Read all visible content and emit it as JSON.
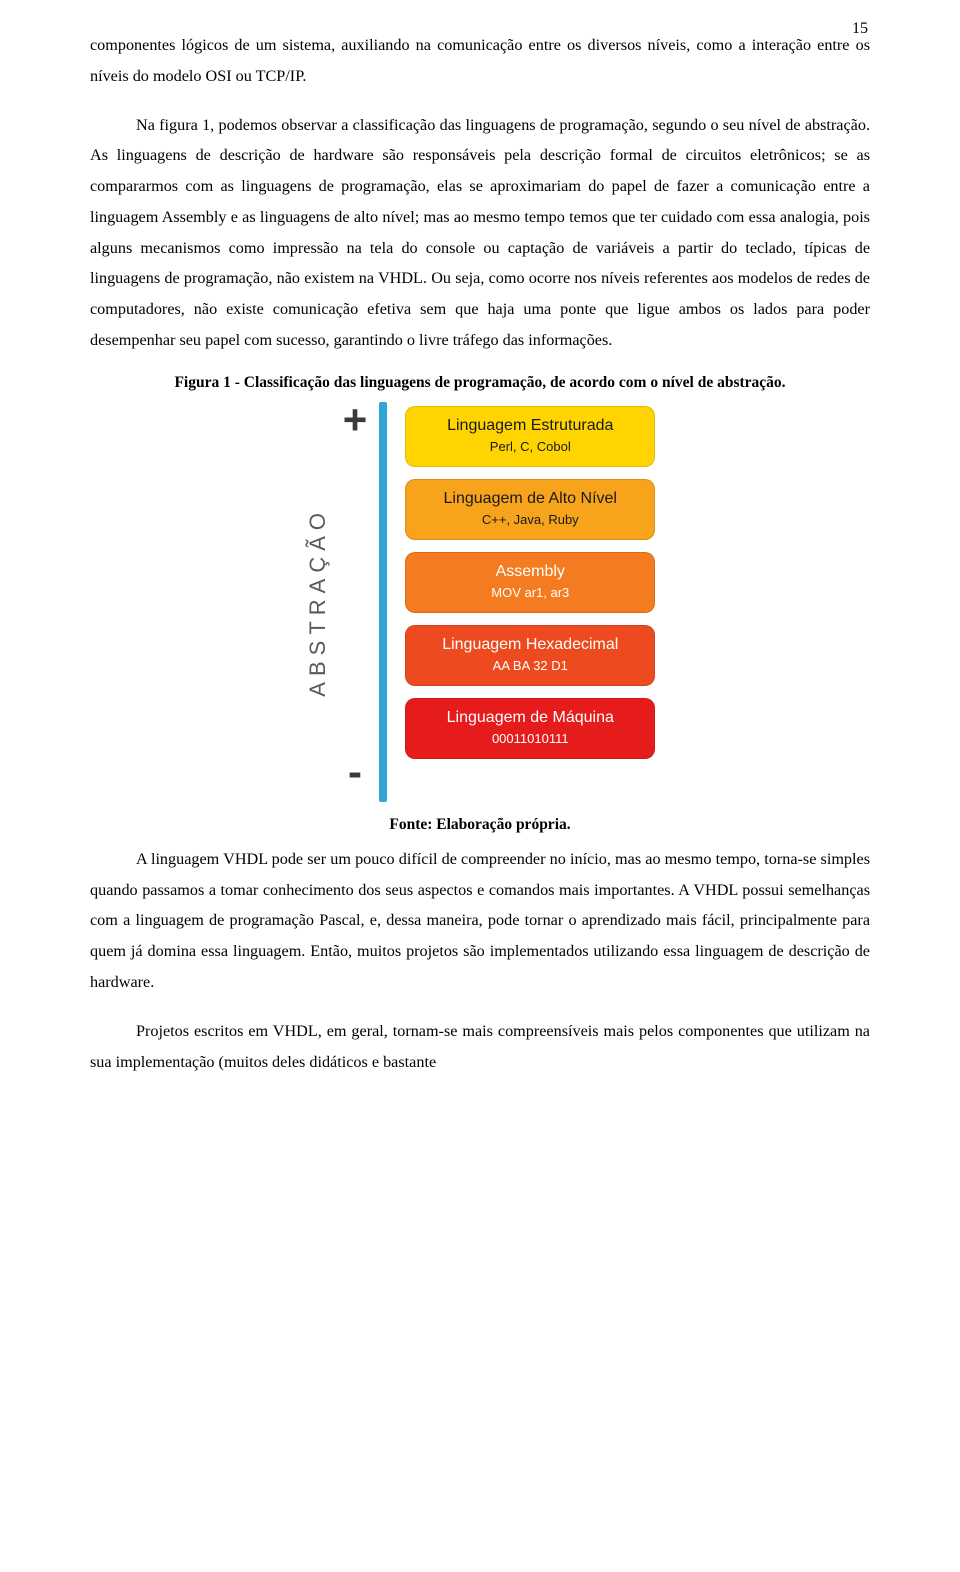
{
  "page_number": "15",
  "paragraphs": {
    "p1": "componentes lógicos de um sistema, auxiliando na comunicação entre os diversos níveis, como a interação entre os níveis do modelo OSI ou TCP/IP.",
    "p2": "Na figura 1, podemos observar a classificação das linguagens de programação, segundo o seu nível de abstração. As linguagens de descrição de hardware são responsáveis pela descrição formal de circuitos eletrônicos; se as compararmos com as linguagens de programação, elas se aproximariam do papel de fazer a comunicação entre a linguagem Assembly e as linguagens de alto nível; mas ao mesmo tempo temos que ter cuidado com essa analogia, pois alguns mecanismos como impressão na tela do console ou captação de variáveis a partir do teclado, típicas de linguagens de programação, não existem na VHDL. Ou seja, como ocorre nos níveis referentes aos modelos de redes de computadores, não existe comunicação efetiva sem que haja uma ponte que ligue ambos os lados para poder desempenhar seu papel com sucesso, garantindo o livre tráfego das informações.",
    "p3": "A linguagem VHDL pode ser um pouco difícil de compreender no início, mas ao mesmo tempo, torna-se simples quando passamos a tomar conhecimento dos seus aspectos e comandos mais importantes. A VHDL possui semelhanças com a linguagem de programação Pascal, e, dessa maneira, pode tornar o aprendizado mais fácil, principalmente para quem já domina essa linguagem. Então, muitos projetos são implementados utilizando essa linguagem de descrição de hardware.",
    "p4": "Projetos escritos em VHDL, em geral, tornam-se mais compreensíveis mais pelos componentes que utilizam na sua implementação (muitos deles didáticos e bastante"
  },
  "figure": {
    "caption": "Figura 1 - Classificação das linguagens de programação, de acordo com o nível de abstração.",
    "source": "Fonte: Elaboração própria.",
    "axis_label": "ABSTRAÇÃO",
    "plus": "+",
    "minus": "-",
    "bar_color": "#2fa6d6",
    "levels": [
      {
        "title": "Linguagem Estruturada",
        "sub": "Perl, C, Cobol",
        "bg": "#ffd400",
        "title_color": "blk",
        "sub_color": "blk"
      },
      {
        "title": "Linguagem de Alto Nível",
        "sub": "C++, Java, Ruby",
        "bg": "#f7a31b",
        "title_color": "blk",
        "sub_color": "blk"
      },
      {
        "title": "Assembly",
        "sub": "MOV ar1, ar3",
        "bg": "#f47b20",
        "title_color": "wht",
        "sub_color": "wht"
      },
      {
        "title": "Linguagem Hexadecimal",
        "sub": "AA BA 32 D1",
        "bg": "#ed4b1f",
        "title_color": "wht",
        "sub_color": "wht"
      },
      {
        "title": "Linguagem de Máquina",
        "sub": "00011010111",
        "bg": "#e61c1c",
        "title_color": "wht",
        "sub_color": "wht"
      }
    ]
  }
}
